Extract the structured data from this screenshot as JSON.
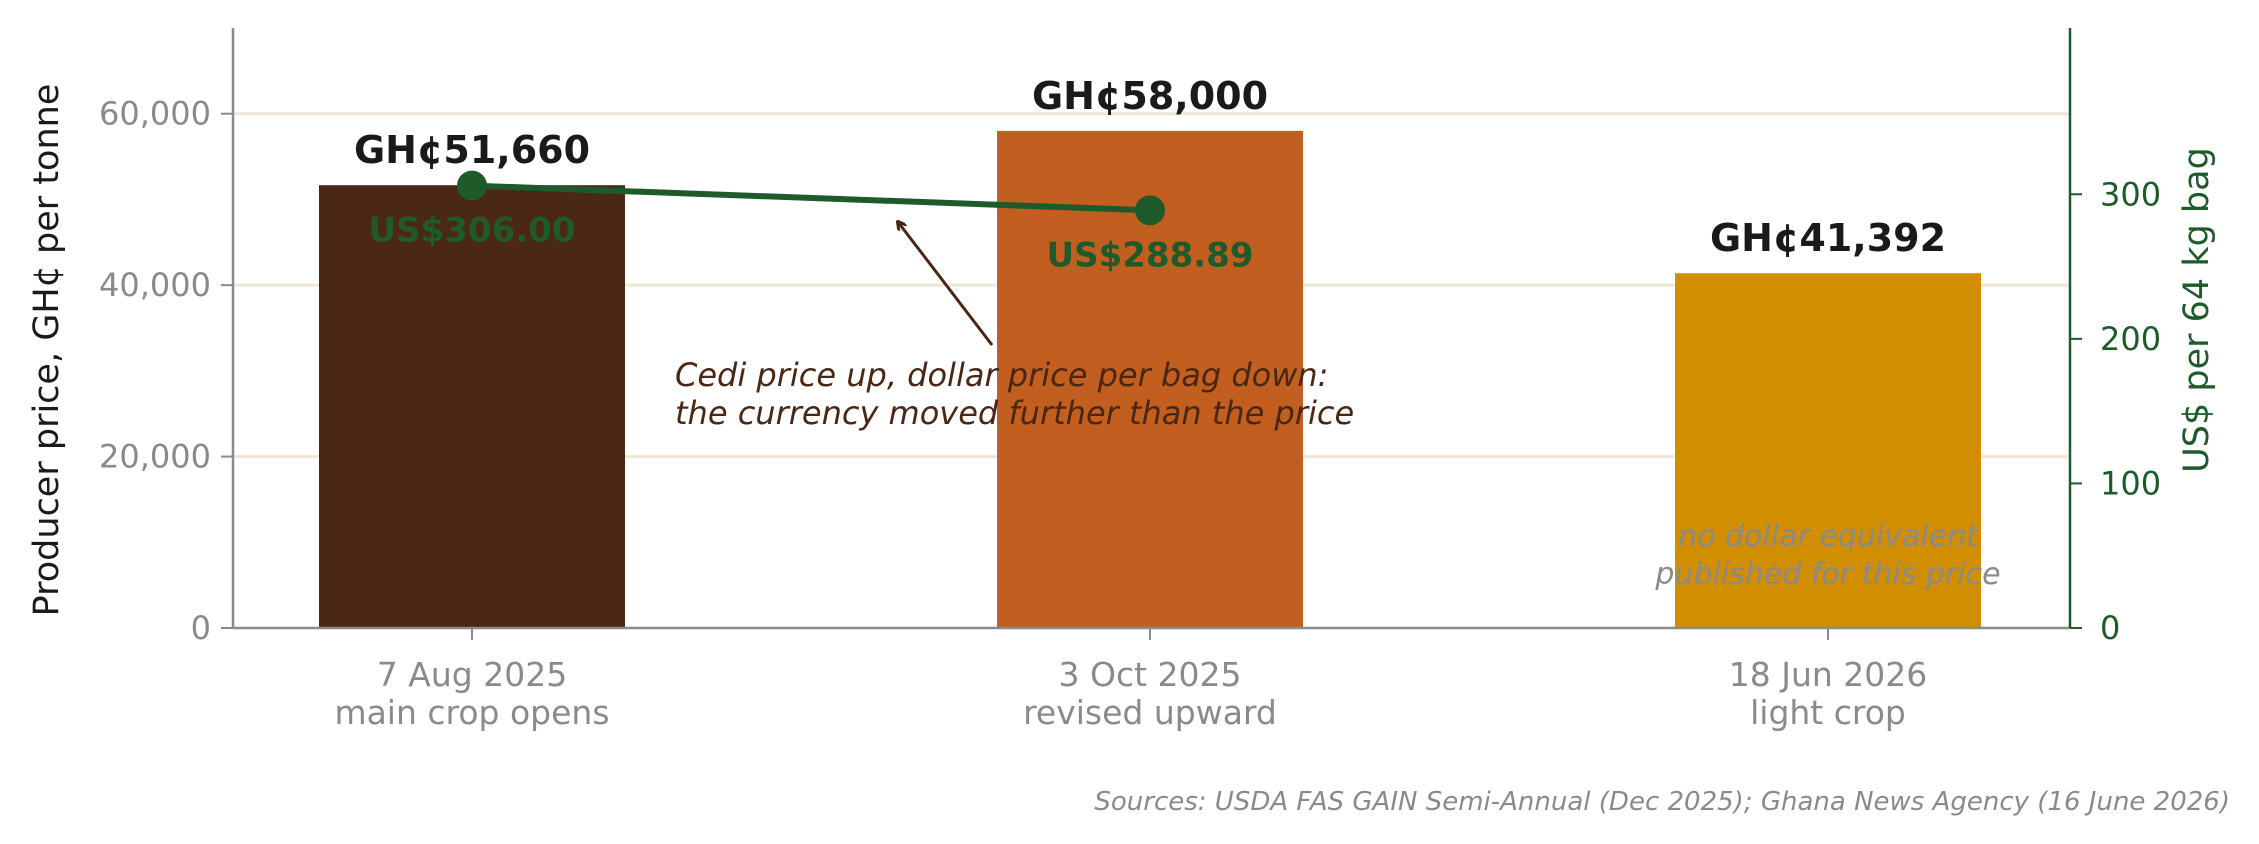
{
  "chart_data": {
    "type": "bar",
    "categories": [
      {
        "date": "7 Aug 2025",
        "note": "main crop opens"
      },
      {
        "date": "3 Oct 2025",
        "note": "revised upward"
      },
      {
        "date": "18 Jun 2026",
        "note": "light crop"
      }
    ],
    "series": [
      {
        "axis": "left",
        "type": "bar",
        "values": [
          51660,
          58000,
          41392
        ],
        "value_labels": [
          "GH¢51,660",
          "GH¢58,000",
          "GH¢41,392"
        ],
        "colors": [
          "#4b2816",
          "#c25e1f",
          "#d08e00"
        ]
      },
      {
        "axis": "right",
        "type": "line",
        "values": [
          306.0,
          288.89,
          null
        ],
        "value_labels": [
          "US$306.00",
          "US$288.89",
          null
        ],
        "color": "#1e5a2a"
      }
    ],
    "ylabel": "Producer price, GH¢ per tonne",
    "ylabel_right": "US$ per 64 kg bag",
    "ylim": [
      0,
      70000
    ],
    "ylim_right": [
      0,
      415
    ],
    "yticks": [
      0,
      20000,
      40000,
      60000
    ],
    "ytick_labels": [
      "0",
      "20,000",
      "40,000",
      "60,000"
    ],
    "yticks_right": [
      0,
      100,
      200,
      300
    ],
    "ytick_labels_right": [
      "0",
      "100",
      "200",
      "300"
    ],
    "grid": true,
    "annotations": {
      "arrow_text": [
        "Cedi price up, dollar price per bag down:",
        "the currency moved further than the price"
      ],
      "no_usd_note": [
        "no dollar equivalent",
        "published for this price"
      ]
    },
    "source": "Sources: USDA FAS GAIN Semi-Annual (Dec 2025); Ghana News Agency (16 June 2026)"
  }
}
